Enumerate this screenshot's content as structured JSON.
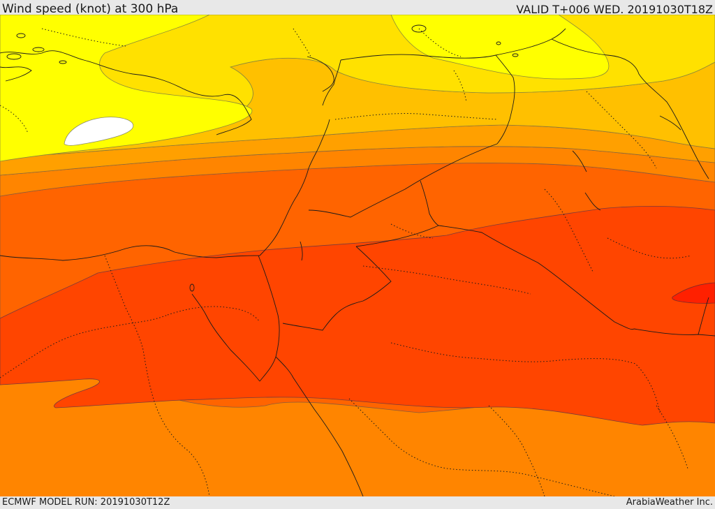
{
  "header": {
    "title": "Wind speed (knot) at 300 hPa",
    "valid": "VALID T+006 WED. 20191030T18Z"
  },
  "footer": {
    "model_run": "ECMWF MODEL RUN: 20191030T12Z",
    "credit": "ArabiaWeather Inc."
  },
  "colors": {
    "white_band": "#ffffff",
    "yellow_light": "#ffff00",
    "yellow": "#ffe100",
    "amber": "#ffc000",
    "orange_light": "#ffa000",
    "orange": "#ff8500",
    "orange_dark": "#ff6400",
    "red_orange": "#ff4500",
    "red": "#ff2000"
  }
}
